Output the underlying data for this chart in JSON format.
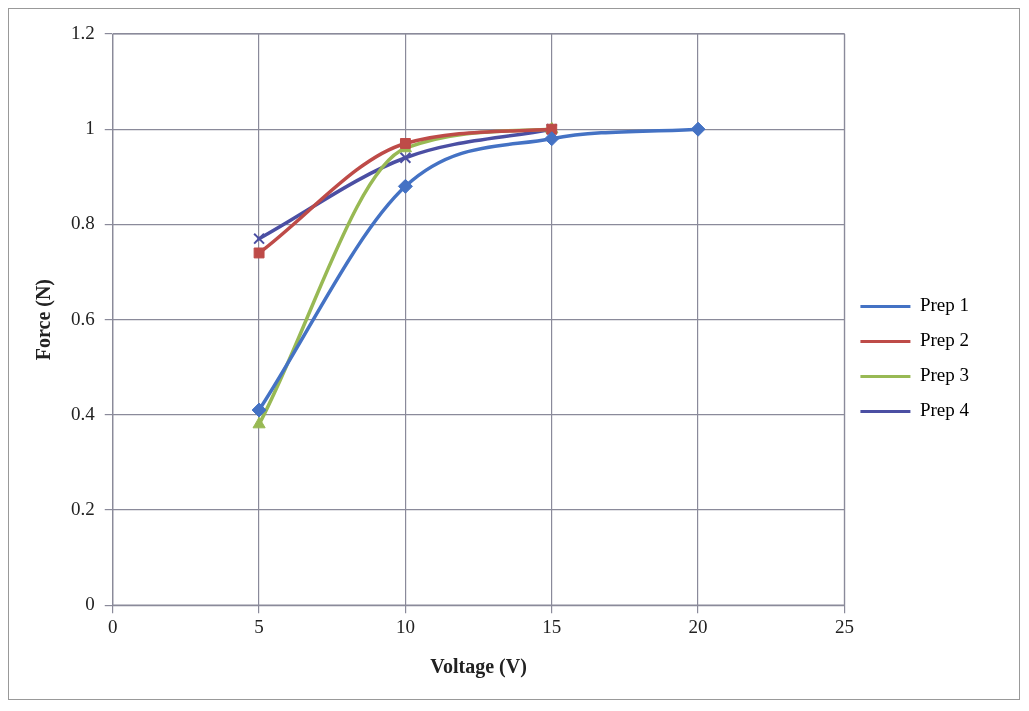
{
  "chart_data": {
    "type": "line",
    "xlabel": "Voltage (V)",
    "ylabel": "Force (N)",
    "xlim": [
      0,
      25
    ],
    "xticks": [
      0,
      5,
      10,
      15,
      20,
      25
    ],
    "ylim": [
      0,
      1.2
    ],
    "yticks": [
      0,
      {
        "value": 0.2,
        "label": "0.2"
      },
      {
        "value": 0.4,
        "label": "0.4"
      },
      {
        "value": 0.6,
        "label": "0.6"
      },
      {
        "value": 0.8,
        "label": "0.8"
      },
      1,
      {
        "value": 1.2,
        "label": "1.2"
      }
    ],
    "grid": true,
    "legend": "right",
    "line_style": "solid",
    "series": [
      {
        "name": "Prep 1",
        "color": "#4472c4",
        "marker": "diamond",
        "x": [
          5,
          10,
          15,
          20
        ],
        "values": [
          0.41,
          0.88,
          0.98,
          1.0
        ]
      },
      {
        "name": "Prep 2",
        "color": "#be4b48",
        "marker": "square",
        "x": [
          5,
          10,
          15
        ],
        "values": [
          0.74,
          0.97,
          1.0
        ]
      },
      {
        "name": "Prep 3",
        "color": "#98b954",
        "marker": "triangle",
        "x": [
          5,
          10,
          15
        ],
        "values": [
          0.38,
          0.96,
          1.0
        ]
      },
      {
        "name": "Prep 4",
        "color": "#4b4fa3",
        "marker": "cross",
        "x": [
          5,
          10,
          15
        ],
        "values": [
          0.77,
          0.94,
          1.0
        ]
      }
    ]
  }
}
